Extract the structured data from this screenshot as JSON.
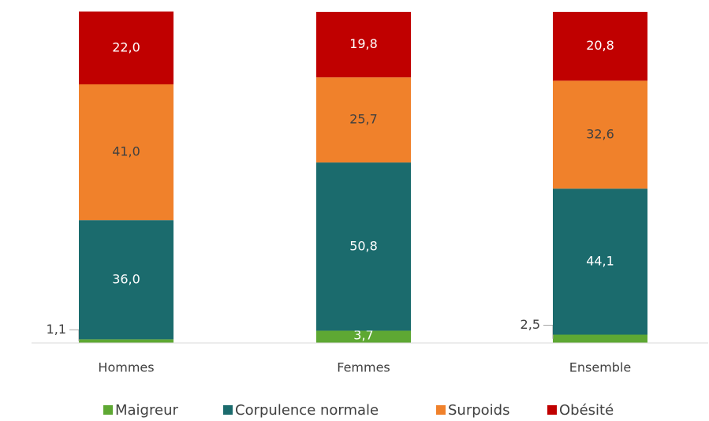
{
  "chart_data": {
    "type": "stacked_bar",
    "categories": [
      "Hommes",
      "Femmes",
      "Ensemble"
    ],
    "ylim": [
      0,
      100
    ],
    "series": [
      {
        "name": "Maigreur",
        "color": "#5ea833",
        "values": [
          1.1,
          3.7,
          2.5
        ],
        "value_labels": [
          "1,1",
          "3,7",
          "2,5"
        ]
      },
      {
        "name": "Corpulence normale",
        "color": "#1b6b6d",
        "values": [
          36.0,
          50.8,
          44.1
        ],
        "value_labels": [
          "36,0",
          "50,8",
          "44,1"
        ]
      },
      {
        "name": "Surpoids",
        "color": "#f0812b",
        "values": [
          41.0,
          25.7,
          32.6
        ],
        "value_labels": [
          "41,0",
          "25,7",
          "32,6"
        ]
      },
      {
        "name": "Obésité",
        "color": "#c00000",
        "values": [
          22.0,
          19.8,
          20.8
        ],
        "value_labels": [
          "22,0",
          "19,8",
          "20,8"
        ]
      }
    ]
  }
}
